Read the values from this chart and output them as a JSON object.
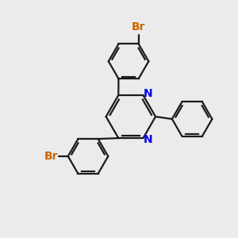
{
  "bg_color": "#ebebeb",
  "bond_color": "#1a1a1a",
  "nitrogen_color": "#0000ee",
  "bromine_color": "#cc6600",
  "bond_lw": 1.6,
  "font_size_N": 10,
  "font_size_Br": 10,
  "figsize": [
    3.0,
    3.0
  ],
  "dpi": 100,
  "xlim": [
    0,
    10
  ],
  "ylim": [
    0,
    10
  ]
}
